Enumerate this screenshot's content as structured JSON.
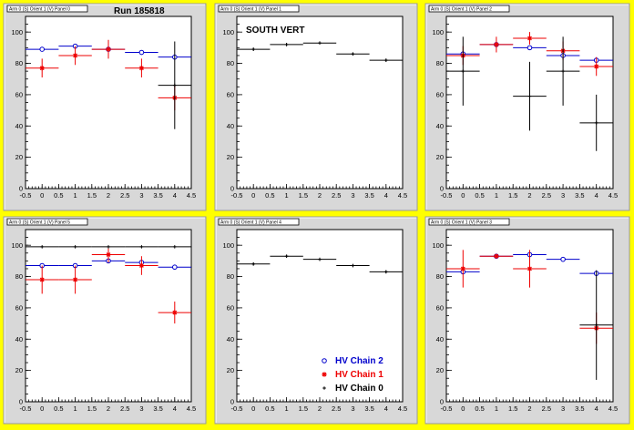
{
  "colors": {
    "background": "#ffff00",
    "pad": "#d8d8d8",
    "frame": "#ffffff",
    "hv_chain_2": "#0000cc",
    "hv_chain_1": "#ee0000",
    "hv_chain_0": "#000000"
  },
  "legend": {
    "entries": [
      {
        "label": "HV Chain 2",
        "color": "#0000cc",
        "marker": "circle"
      },
      {
        "label": "HV Chain 1",
        "color": "#ee0000",
        "marker": "star"
      },
      {
        "label": "HV Chain 0",
        "color": "#000000",
        "marker": "plus"
      }
    ]
  },
  "chart_data": [
    {
      "type": "scatter",
      "title": "Arm 0 (S) Orient 1 (V) Panel 0",
      "annotation": "Run 185818",
      "xlim": [
        -0.5,
        4.5
      ],
      "ylim": [
        0,
        110
      ],
      "xticks": [
        "-0.5",
        "0",
        "0.5",
        "1",
        "1.5",
        "2",
        "2.5",
        "3",
        "3.5",
        "4",
        "4.5"
      ],
      "yticks": [
        "0",
        "20",
        "40",
        "60",
        "80",
        "100"
      ],
      "series": [
        {
          "name": "HV Chain 2",
          "points": [
            [
              0,
              89,
              0
            ],
            [
              1,
              91,
              0
            ],
            [
              2,
              89,
              0
            ],
            [
              3,
              87,
              0
            ],
            [
              4,
              84,
              0
            ]
          ]
        },
        {
          "name": "HV Chain 1",
          "points": [
            [
              0,
              77,
              6
            ],
            [
              1,
              85,
              6
            ],
            [
              2,
              89,
              6
            ],
            [
              3,
              77,
              6
            ],
            [
              4,
              58,
              8
            ]
          ]
        },
        {
          "name": "HV Chain 0",
          "points": [
            [
              4,
              66,
              28
            ]
          ]
        }
      ]
    },
    {
      "type": "scatter",
      "title": "Arm 0 (S) Orient 1 (V) Panel 1",
      "annotation": "SOUTH VERT",
      "xlim": [
        -0.5,
        4.5
      ],
      "ylim": [
        0,
        110
      ],
      "xticks": [
        "-0.5",
        "0",
        "0.5",
        "1",
        "1.5",
        "2",
        "2.5",
        "3",
        "3.5",
        "4",
        "4.5"
      ],
      "yticks": [
        "0",
        "20",
        "40",
        "60",
        "80",
        "100"
      ],
      "series": [
        {
          "name": "HV Chain 0",
          "points": [
            [
              0,
              89,
              1
            ],
            [
              1,
              92,
              1
            ],
            [
              2,
              93,
              1
            ],
            [
              3,
              86,
              1
            ],
            [
              4,
              82,
              1
            ]
          ]
        }
      ]
    },
    {
      "type": "scatter",
      "title": "Arm 0 (S) Orient 1 (V) Panel 2",
      "annotation": "",
      "xlim": [
        -0.5,
        4.5
      ],
      "ylim": [
        0,
        110
      ],
      "xticks": [
        "-0.5",
        "0",
        "0.5",
        "1",
        "1.5",
        "2",
        "2.5",
        "3",
        "3.5",
        "4",
        "4.5"
      ],
      "yticks": [
        "0",
        "20",
        "40",
        "60",
        "80",
        "100"
      ],
      "series": [
        {
          "name": "HV Chain 2",
          "points": [
            [
              0,
              86,
              0
            ],
            [
              1,
              92,
              0
            ],
            [
              2,
              90,
              0
            ],
            [
              3,
              85,
              0
            ],
            [
              4,
              82,
              0
            ]
          ]
        },
        {
          "name": "HV Chain 1",
          "points": [
            [
              0,
              85,
              6
            ],
            [
              1,
              92,
              5
            ],
            [
              2,
              96,
              4
            ],
            [
              3,
              88,
              6
            ],
            [
              4,
              78,
              6
            ]
          ]
        },
        {
          "name": "HV Chain 0",
          "points": [
            [
              0,
              75,
              22
            ],
            [
              2,
              59,
              22
            ],
            [
              3,
              75,
              22
            ],
            [
              4,
              42,
              18
            ]
          ]
        }
      ]
    },
    {
      "type": "scatter",
      "title": "Arm 0 (S) Orient 1 (V) Panel 5",
      "annotation": "",
      "xlim": [
        -0.5,
        4.5
      ],
      "ylim": [
        0,
        110
      ],
      "xticks": [
        "-0.5",
        "0",
        "0.5",
        "1",
        "1.5",
        "2",
        "2.5",
        "3",
        "3.5",
        "4",
        "4.5"
      ],
      "yticks": [
        "0",
        "20",
        "40",
        "60",
        "80",
        "100"
      ],
      "series": [
        {
          "name": "HV Chain 2",
          "points": [
            [
              0,
              87,
              0
            ],
            [
              1,
              87,
              0
            ],
            [
              2,
              90,
              0
            ],
            [
              3,
              89,
              0
            ],
            [
              4,
              86,
              0
            ]
          ]
        },
        {
          "name": "HV Chain 1",
          "points": [
            [
              0,
              78,
              9
            ],
            [
              1,
              78,
              9
            ],
            [
              2,
              94,
              5
            ],
            [
              3,
              87,
              6
            ],
            [
              4,
              57,
              7
            ]
          ]
        },
        {
          "name": "HV Chain 0",
          "points": [
            [
              0,
              99,
              0
            ],
            [
              1,
              99,
              0
            ],
            [
              2,
              99,
              0
            ],
            [
              3,
              99,
              0
            ],
            [
              4,
              99,
              0
            ]
          ]
        }
      ]
    },
    {
      "type": "scatter",
      "title": "Arm 0 (S) Orient 1 (V) Panel 4",
      "annotation": "",
      "xlim": [
        -0.5,
        4.5
      ],
      "ylim": [
        0,
        110
      ],
      "xticks": [
        "-0.5",
        "0",
        "0.5",
        "1",
        "1.5",
        "2",
        "2.5",
        "3",
        "3.5",
        "4",
        "4.5"
      ],
      "yticks": [
        "0",
        "20",
        "40",
        "60",
        "80",
        "100"
      ],
      "legend": true,
      "series": [
        {
          "name": "HV Chain 0",
          "points": [
            [
              0,
              88,
              1
            ],
            [
              1,
              93,
              1
            ],
            [
              2,
              91,
              1
            ],
            [
              3,
              87,
              1
            ],
            [
              4,
              83,
              1
            ]
          ]
        }
      ]
    },
    {
      "type": "scatter",
      "title": "Arm 0 (S) Orient 1 (V) Panel 3",
      "annotation": "",
      "xlim": [
        -0.5,
        4.5
      ],
      "ylim": [
        0,
        110
      ],
      "xticks": [
        "-0.5",
        "0",
        "0.5",
        "1",
        "1.5",
        "2",
        "2.5",
        "3",
        "3.5",
        "4",
        "4.5"
      ],
      "yticks": [
        "0",
        "20",
        "40",
        "60",
        "80",
        "100"
      ],
      "series": [
        {
          "name": "HV Chain 2",
          "points": [
            [
              0,
              83,
              0
            ],
            [
              1,
              93,
              0
            ],
            [
              2,
              94,
              0
            ],
            [
              3,
              91,
              0
            ],
            [
              4,
              82,
              0
            ]
          ]
        },
        {
          "name": "HV Chain 1",
          "points": [
            [
              0,
              85,
              12
            ],
            [
              1,
              93,
              0
            ],
            [
              2,
              85,
              12
            ],
            [
              4,
              47,
              10
            ]
          ]
        },
        {
          "name": "HV Chain 0",
          "points": [
            [
              4,
              49,
              35
            ]
          ]
        }
      ]
    }
  ]
}
